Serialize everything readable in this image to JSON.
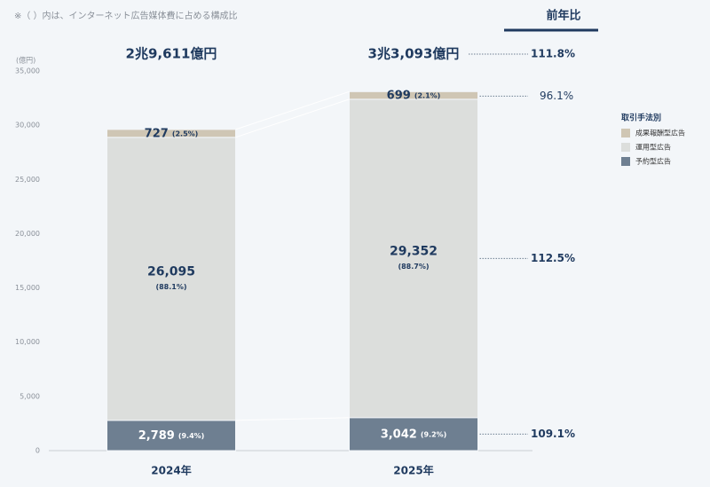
{
  "chart_data": {
    "type": "stacked-bar",
    "note": "※（ ）内は、インターネット広告媒体費に占める構成比",
    "y_unit": "(億円)",
    "categories": [
      "2024年",
      "2025年"
    ],
    "ylim": [
      0,
      35000
    ],
    "yticks": [
      0,
      {
        "value": 5000,
        "label": "5,000"
      },
      {
        "value": 10000,
        "label": "10,000"
      },
      {
        "value": 15000,
        "label": "15,000"
      },
      {
        "value": 20000,
        "label": "20,000"
      },
      {
        "value": 25000,
        "label": "25,000"
      },
      {
        "value": 30000,
        "label": "30,000"
      },
      {
        "value": 35000,
        "label": "35,000"
      }
    ],
    "grid": false,
    "series": [
      {
        "name": "予約型広告",
        "color": "#6e7f91",
        "values": [
          2789,
          3042
        ],
        "value_labels": [
          "2,789",
          "3,042"
        ],
        "share_labels": [
          "(9.4%)",
          "(9.2%)"
        ],
        "yoy_label": "109.1%"
      },
      {
        "name": "運用型広告",
        "color": "#dcdedc",
        "values": [
          26095,
          29352
        ],
        "value_labels": [
          "26,095",
          "29,352"
        ],
        "share_labels": [
          "(88.1%)",
          "(88.7%)"
        ],
        "yoy_label": "112.5%"
      },
      {
        "name": "成果報酬型広告",
        "color": "#cfc6b4",
        "values": [
          727,
          699
        ],
        "value_labels": [
          "727",
          "699"
        ],
        "share_labels": [
          "(2.5%)",
          "(2.1%)"
        ],
        "yoy_label": "96.1%"
      }
    ],
    "total_labels": [
      "2兆9,611億円",
      "3兆3,093億円"
    ],
    "total_yoy_label": "111.8%",
    "yoy_header": "前年比",
    "legend_title": "取引手法別",
    "legend": "right"
  }
}
